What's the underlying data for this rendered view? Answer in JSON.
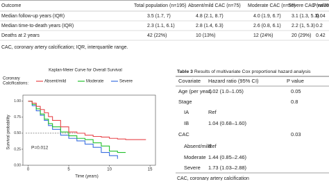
{
  "top_table": {
    "columns": [
      "Outcome",
      "Total population (n=195)",
      "Absent/mild CAC (n=75)",
      "Moderate CAC (n=50)",
      "Severe CAC (n=70)",
      "P value"
    ],
    "rows": [
      [
        "Median follow-up years (IQR)",
        "3.5 (1.7, 7)",
        "4.8 (2.1, 8.7)",
        "4.0 (1.9, 6.7)",
        "3.1 (1.3, 5.3)",
        "0.04"
      ],
      [
        "Median time-to-death years (IQR)",
        "2.3 (1.1, 6.1)",
        "2.8 (1.4, 6.3)",
        "2.6 (0.8, 6.1)",
        "2.2 (1, 5.3)",
        "0.2"
      ],
      [
        "Deaths at 2 years",
        "42 (22%)",
        "10 (13%)",
        "12 (24%)",
        "20 (29%)",
        "0.42"
      ]
    ],
    "footnote": "CAC, coronary artery calcification; IQR, interquartile range."
  },
  "chart_data": {
    "type": "line",
    "step": true,
    "title": "Kaplan-Meier Curve for Overall Survival",
    "legend_title": [
      "Coronary",
      "Calcifications:"
    ],
    "x_label": "Time (years)",
    "y_label": "Survival probability",
    "annotation": "P=0.012",
    "reference_line": 0.5,
    "xlim": [
      -0.3,
      15.5
    ],
    "ylim": [
      0,
      1.03
    ],
    "xticks": [
      0,
      5,
      10,
      15
    ],
    "yticks": [
      {
        "value": 0,
        "label": "0.00"
      },
      {
        "value": 0.25,
        "label": "0.25"
      },
      {
        "value": 0.5,
        "label": "0.50"
      },
      {
        "value": 0.75,
        "label": "0.75"
      },
      {
        "value": 1,
        "label": "1.00"
      }
    ],
    "series": [
      {
        "name": "Absent/mild",
        "color": "#e8454a",
        "x": [
          0,
          0.5,
          1,
          1.5,
          2,
          2.5,
          3,
          4,
          5,
          6,
          7,
          8,
          9,
          10,
          11,
          12,
          13,
          14.5
        ],
        "values": [
          1,
          0.97,
          0.92,
          0.87,
          0.82,
          0.76,
          0.7,
          0.6,
          0.52,
          0.5,
          0.47,
          0.45,
          0.44,
          0.42,
          0.41,
          0.4,
          0.4,
          0.4
        ]
      },
      {
        "name": "Moderate",
        "color": "#22c02a",
        "x": [
          0,
          0.5,
          1,
          1.5,
          2,
          2.5,
          3,
          4,
          5,
          6,
          7,
          8,
          9,
          10,
          11,
          12
        ],
        "values": [
          1,
          0.95,
          0.88,
          0.8,
          0.72,
          0.65,
          0.6,
          0.52,
          0.46,
          0.42,
          0.4,
          0.35,
          0.3,
          0.22,
          0.2,
          0.2
        ]
      },
      {
        "name": "Severe",
        "color": "#3a6fe0",
        "x": [
          0,
          0.5,
          1,
          1.5,
          2,
          2.5,
          3,
          4,
          5,
          6,
          7,
          8,
          9,
          10,
          11
        ],
        "values": [
          1,
          0.93,
          0.85,
          0.78,
          0.7,
          0.62,
          0.56,
          0.47,
          0.42,
          0.38,
          0.33,
          0.28,
          0.2,
          0.15,
          0.1
        ]
      }
    ]
  },
  "cox_table": {
    "label": "Table 3",
    "title": "Results of multivariate Cox proportional hazard analysis",
    "columns": [
      "Covariate",
      "Hazard ratio (95% CI)",
      "P value"
    ],
    "rows": [
      {
        "covariate": "Age (per year)",
        "hr": "1.02 (1.0–1.05)",
        "p": "0.05"
      },
      {
        "covariate": "Stage",
        "p": "0.8"
      },
      {
        "covariate": "IA",
        "hr": "Ref",
        "indent": true
      },
      {
        "covariate": "IB",
        "hr": "1.04 (0.68–1.60)",
        "indent": true
      },
      {
        "covariate": "CAC",
        "p": "0.03"
      },
      {
        "covariate": "Absent/mild",
        "hr": "Ref",
        "indent": true
      },
      {
        "covariate": "Moderate",
        "hr": "1.44 (0.85–2.46)",
        "indent": true
      },
      {
        "covariate": "Severe",
        "hr": "1.73 (1.03–2.88)",
        "indent": true
      }
    ],
    "footnote": "CAC, coronary artery calcification"
  }
}
